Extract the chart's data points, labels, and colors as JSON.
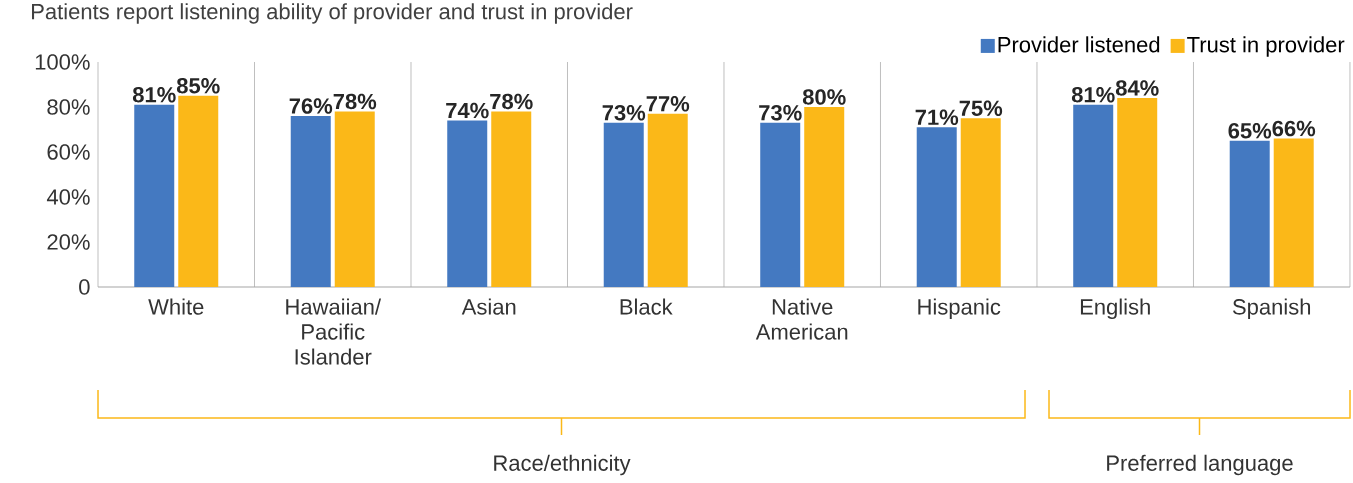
{
  "chart_data": {
    "type": "bar",
    "title": "Patients report listening ability of provider and trust in provider",
    "categories": [
      "White",
      "Hawaiian/ Pacific Islander",
      "Asian",
      "Black",
      "Native American",
      "Hispanic",
      "English",
      "Spanish"
    ],
    "series": [
      {
        "name": "Provider listened",
        "color": "#4479c1",
        "values": [
          81,
          76,
          74,
          73,
          73,
          71,
          81,
          65
        ],
        "value_labels": [
          "81%",
          "76%",
          "74%",
          "73%",
          "73%",
          "71%",
          "81%",
          "65%"
        ]
      },
      {
        "name": "Trust in provider",
        "color": "#fbb818",
        "values": [
          85,
          78,
          78,
          77,
          80,
          75,
          84,
          66
        ],
        "value_labels": [
          "85%",
          "78%",
          "78%",
          "77%",
          "80%",
          "75%",
          "84%",
          "66%"
        ]
      }
    ],
    "ylim": [
      0,
      100
    ],
    "yticks": [
      0,
      {
        "value": 20,
        "label": "20%"
      },
      {
        "value": 40,
        "label": "40%"
      },
      {
        "value": 60,
        "label": "60%"
      },
      {
        "value": 80,
        "label": "80%"
      },
      {
        "value": 100,
        "label": "100%"
      }
    ],
    "grid": "x",
    "legend": "top right",
    "annotations": [
      "Race/ethnicity",
      "Preferred language"
    ]
  }
}
